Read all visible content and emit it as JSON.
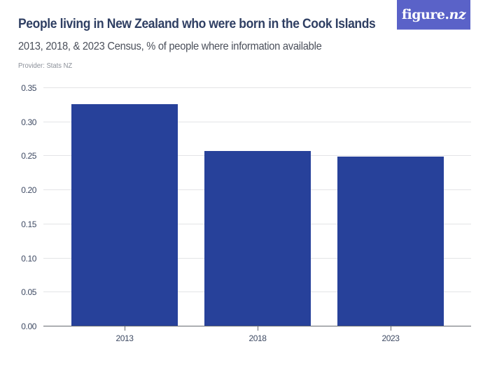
{
  "header": {
    "title": "People living in New Zealand who were born in the Cook Islands",
    "subtitle": "2013, 2018, & 2023 Census, % of people where information available",
    "provider": "Provider: Stats NZ",
    "logo_main": "figure.",
    "logo_nz": "nz"
  },
  "colors": {
    "bar": "#27419a",
    "logo_bg": "#5a62c8",
    "title": "#2f3f63"
  },
  "chart_data": {
    "type": "bar",
    "title": "People living in New Zealand who were born in the Cook Islands",
    "subtitle": "2013, 2018, & 2023 Census, % of people where information available",
    "source": "Provider: Stats NZ",
    "categories": [
      "2013",
      "2018",
      "2023"
    ],
    "values": [
      0.325,
      0.257,
      0.248
    ],
    "xlabel": "",
    "ylabel": "",
    "ylim": [
      0,
      0.35
    ],
    "yticks": [
      "0.00",
      "0.05",
      "0.10",
      "0.15",
      "0.20",
      "0.25",
      "0.30",
      "0.35"
    ],
    "grid": true,
    "legend": null
  }
}
